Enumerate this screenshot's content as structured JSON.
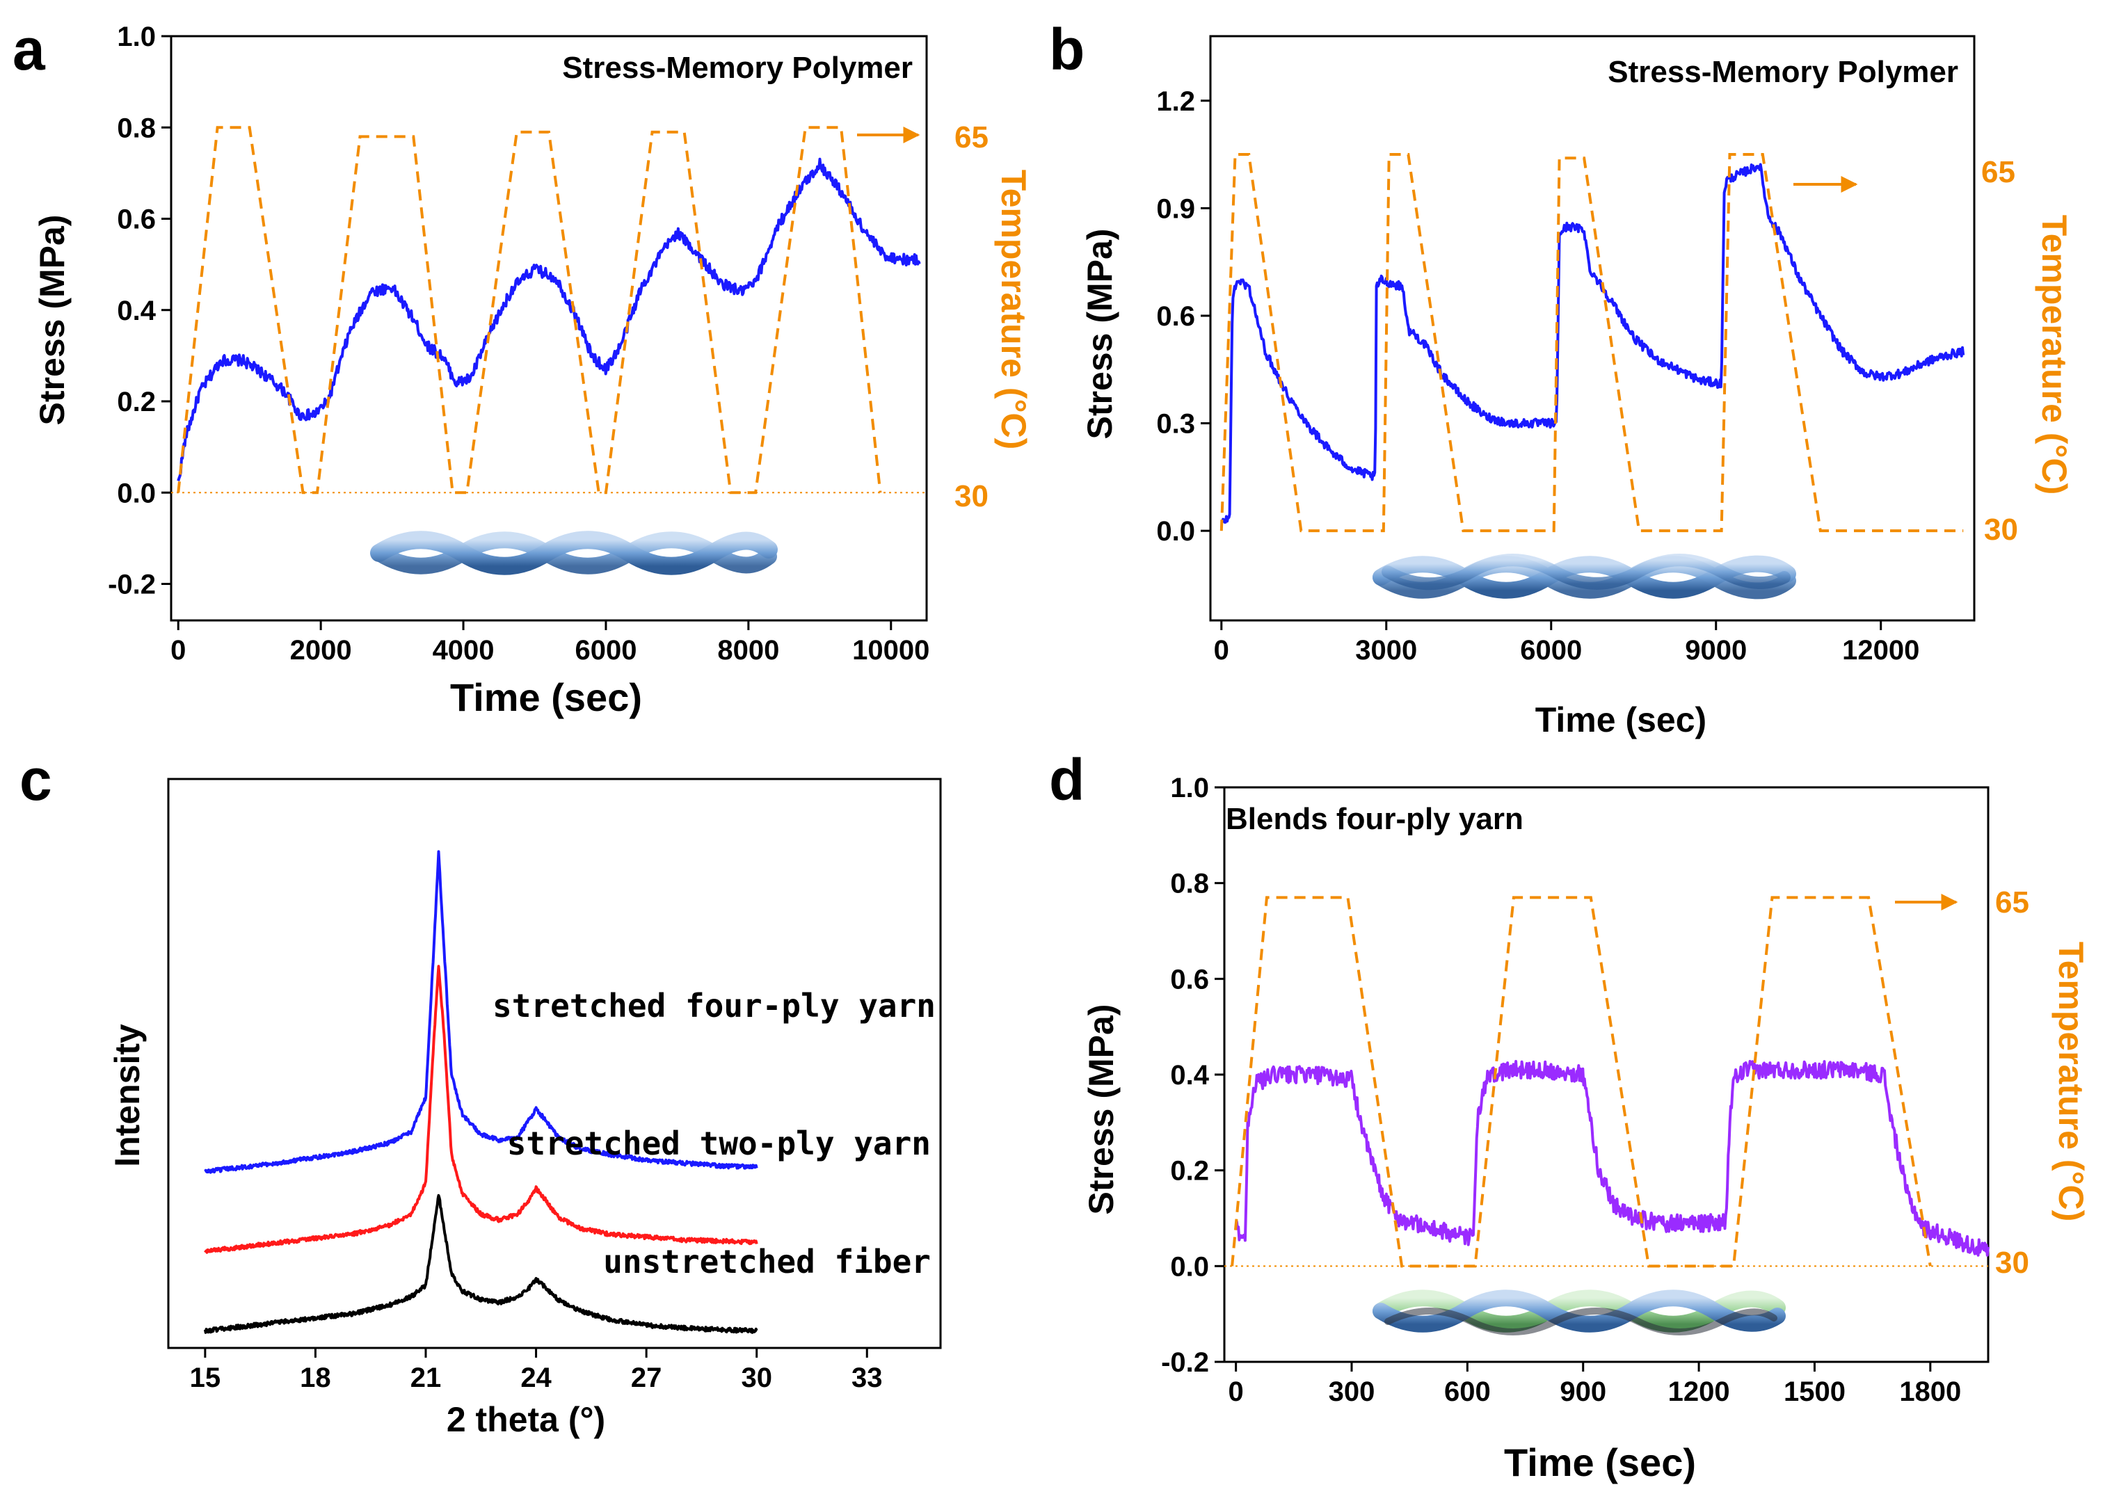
{
  "colors": {
    "stress_blue": "#1a1aff",
    "stress_purple": "#9a2bff",
    "temperature_orange": "#f28c00",
    "xrd_red": "#ff1a1a",
    "xrd_black": "#000000"
  },
  "chart_data": [
    {
      "panel": "a",
      "type": "line",
      "title": "Stress-Memory Polymer",
      "xlabel": "Time (sec)",
      "ylabel": "Stress (MPa)",
      "ylabel_right": "Temperature (°C)",
      "xlim": [
        -100,
        10500
      ],
      "ylim": [
        -0.28,
        1.0
      ],
      "x_ticks": [
        "0",
        "2000",
        "4000",
        "6000",
        "8000",
        "10000"
      ],
      "x_tick_values": [
        0,
        2000,
        4000,
        6000,
        8000,
        10000
      ],
      "y_ticks": [
        "1.0",
        "0.8",
        "0.6",
        "0.4",
        "0.2",
        "0.0",
        "-0.2"
      ],
      "y_tick_values": [
        1.0,
        0.8,
        0.6,
        0.4,
        0.2,
        0.0,
        -0.2
      ],
      "right_ticks": [
        {
          "label": "65",
          "stress_level": 0.8
        },
        {
          "label": "30",
          "stress_level": 0.0
        }
      ],
      "series": [
        {
          "name": "Stress",
          "kind": "stress",
          "x": [
            0,
            100,
            300,
            600,
            900,
            1200,
            1500,
            1700,
            1900,
            2100,
            2400,
            2700,
            3000,
            3300,
            3500,
            3700,
            3900,
            4100,
            4400,
            4700,
            5000,
            5300,
            5600,
            5800,
            6000,
            6200,
            6500,
            6800,
            7000,
            7300,
            7600,
            7900,
            8100,
            8400,
            8700,
            9000,
            9300,
            9600,
            9900,
            10200,
            10400
          ],
          "values": [
            0.02,
            0.12,
            0.22,
            0.29,
            0.29,
            0.26,
            0.22,
            0.17,
            0.17,
            0.2,
            0.35,
            0.44,
            0.45,
            0.38,
            0.32,
            0.3,
            0.24,
            0.25,
            0.36,
            0.45,
            0.49,
            0.47,
            0.38,
            0.3,
            0.27,
            0.32,
            0.45,
            0.53,
            0.57,
            0.52,
            0.46,
            0.44,
            0.46,
            0.58,
            0.66,
            0.72,
            0.66,
            0.58,
            0.52,
            0.51,
            0.51
          ],
          "noise": 0.012
        },
        {
          "name": "Temperature",
          "kind": "temperature",
          "style": "dashed",
          "x": [
            0,
            550,
            1000,
            1750,
            1950,
            2550,
            3300,
            3850,
            4050,
            4750,
            5200,
            5900,
            6000,
            6650,
            7100,
            7750,
            8100,
            8800,
            9300,
            9850
          ],
          "values": [
            0.0,
            0.8,
            0.8,
            0.0,
            0.0,
            0.78,
            0.78,
            0.0,
            0.0,
            0.79,
            0.79,
            0.0,
            0.0,
            0.79,
            0.79,
            0.0,
            0.0,
            0.8,
            0.8,
            0.0
          ]
        }
      ]
    },
    {
      "panel": "b",
      "type": "line",
      "title": "Stress-Memory Polymer",
      "xlabel": "Time (sec)",
      "ylabel": "Stress (MPa)",
      "ylabel_right": "Temperature (°C)",
      "xlim": [
        -200,
        13700
      ],
      "ylim": [
        -0.25,
        1.38
      ],
      "x_ticks": [
        "0",
        "3000",
        "6000",
        "9000",
        "12000"
      ],
      "x_tick_values": [
        0,
        3000,
        6000,
        9000,
        12000
      ],
      "y_ticks": [
        "1.2",
        "0.9",
        "0.6",
        "0.3",
        "0.0"
      ],
      "y_tick_values": [
        1.2,
        0.9,
        0.6,
        0.3,
        0.0
      ],
      "right_ticks": [
        {
          "label": "65",
          "stress_level": 1.0
        },
        {
          "label": "30",
          "stress_level": 0.0
        }
      ],
      "series": [
        {
          "name": "Stress",
          "kind": "stress",
          "x": [
            0,
            150,
            200,
            300,
            500,
            800,
            1200,
            1600,
            2000,
            2400,
            2800,
            2820,
            2900,
            3300,
            3400,
            3500,
            3700,
            4000,
            4400,
            4800,
            5200,
            5600,
            6000,
            6100,
            6150,
            6300,
            6600,
            6700,
            6800,
            7100,
            7500,
            7900,
            8300,
            8700,
            9100,
            9150,
            9200,
            9500,
            9800,
            9950,
            10200,
            10500,
            10900,
            11300,
            11700,
            12000,
            12400,
            12800,
            13200,
            13500
          ],
          "values": [
            0.02,
            0.04,
            0.65,
            0.7,
            0.68,
            0.5,
            0.38,
            0.29,
            0.22,
            0.17,
            0.15,
            0.68,
            0.7,
            0.68,
            0.56,
            0.55,
            0.52,
            0.44,
            0.37,
            0.32,
            0.3,
            0.3,
            0.3,
            0.3,
            0.83,
            0.85,
            0.84,
            0.73,
            0.71,
            0.64,
            0.54,
            0.48,
            0.45,
            0.42,
            0.41,
            0.95,
            0.98,
            1.0,
            1.02,
            0.88,
            0.82,
            0.71,
            0.6,
            0.5,
            0.44,
            0.43,
            0.44,
            0.47,
            0.49,
            0.5
          ],
          "noise": 0.012
        },
        {
          "name": "Temperature",
          "kind": "temperature",
          "style": "dashed",
          "x": [
            0,
            250,
            500,
            1450,
            2950,
            3050,
            3400,
            4400,
            6050,
            6150,
            6600,
            7600,
            9100,
            9250,
            9850,
            10900,
            13500
          ],
          "values": [
            0.0,
            1.05,
            1.05,
            0.0,
            0.0,
            1.05,
            1.05,
            0.0,
            0.0,
            1.04,
            1.04,
            0.0,
            0.0,
            1.05,
            1.05,
            0.0,
            0.0
          ]
        }
      ]
    },
    {
      "panel": "c",
      "type": "line",
      "title": "",
      "xlabel": "2 theta (°)",
      "ylabel": "Intensity",
      "xlim": [
        14,
        35
      ],
      "ylim": [
        0,
        100
      ],
      "x_ticks": [
        "15",
        "18",
        "21",
        "24",
        "27",
        "30",
        "33"
      ],
      "x_tick_values": [
        15,
        18,
        21,
        24,
        27,
        30,
        33
      ],
      "series": [
        {
          "name": "stretched four-ply  yarn",
          "color_key": "stress_blue",
          "x": [
            15,
            17,
            19,
            20,
            20.6,
            21.0,
            21.2,
            21.35,
            21.5,
            21.7,
            22.0,
            22.5,
            23.0,
            23.5,
            23.8,
            24.0,
            24.2,
            24.6,
            25.2,
            26,
            27,
            28,
            29,
            30
          ],
          "values": [
            31,
            32.5,
            34.5,
            36,
            38,
            44,
            68,
            87,
            70,
            48,
            41,
            37.5,
            36.5,
            37,
            40,
            42,
            40.5,
            37,
            35,
            34,
            33,
            32.5,
            32,
            31.8
          ],
          "noise": 0.35
        },
        {
          "name": "stretched two-ply yarn",
          "color_key": "xrd_red",
          "x": [
            15,
            17,
            19,
            20,
            20.6,
            21.0,
            21.2,
            21.35,
            21.5,
            21.7,
            22.0,
            22.5,
            23.0,
            23.5,
            23.8,
            24.0,
            24.2,
            24.6,
            25.2,
            26,
            27,
            28,
            29,
            30
          ],
          "values": [
            17,
            18.5,
            20,
            21.5,
            23.5,
            29,
            52,
            67,
            55,
            34,
            27,
            23.5,
            22.5,
            23.5,
            26,
            28,
            26.5,
            23,
            21,
            20,
            19.5,
            19,
            18.8,
            18.6
          ],
          "noise": 0.35
        },
        {
          "name": "unstretched fiber",
          "color_key": "xrd_black",
          "x": [
            15,
            17,
            19,
            20,
            20.6,
            21.0,
            21.2,
            21.35,
            21.5,
            21.7,
            22.0,
            22.5,
            23.0,
            23.5,
            23.8,
            24.0,
            24.2,
            24.6,
            25.2,
            26,
            27,
            28,
            29,
            30
          ],
          "values": [
            3,
            4.5,
            6,
            7.5,
            9,
            11,
            20,
            27,
            21,
            13,
            10,
            8.5,
            8,
            9,
            10.5,
            12,
            11,
            8.5,
            6.5,
            5,
            4,
            3.5,
            3.2,
            3
          ],
          "noise": 0.35
        }
      ]
    },
    {
      "panel": "d",
      "type": "line",
      "title": "Blends    four-ply yarn",
      "xlabel": "Time (sec)",
      "ylabel": "Stress (MPa)",
      "ylabel_right": "Temperature (°C)",
      "xlim": [
        -30,
        1950
      ],
      "ylim": [
        -0.2,
        1.0
      ],
      "x_ticks": [
        "0",
        "300",
        "600",
        "900",
        "1200",
        "1500",
        "1800"
      ],
      "x_tick_values": [
        0,
        300,
        600,
        900,
        1200,
        1500,
        1800
      ],
      "y_ticks": [
        "1.0",
        "0.8",
        "0.6",
        "0.4",
        "0.2",
        "0.0",
        "-0.2"
      ],
      "y_tick_values": [
        1.0,
        0.8,
        0.6,
        0.4,
        0.2,
        0.0,
        -0.2
      ],
      "right_ticks": [
        {
          "label": "65",
          "stress_level": 0.77
        },
        {
          "label": "30",
          "stress_level": 0.0
        }
      ],
      "series": [
        {
          "name": "Stress",
          "kind": "stress",
          "x": [
            0,
            20,
            25,
            30,
            50,
            100,
            200,
            300,
            310,
            340,
            380,
            420,
            500,
            600,
            615,
            625,
            650,
            700,
            800,
            900,
            910,
            940,
            980,
            1030,
            1100,
            1200,
            1270,
            1280,
            1290,
            1320,
            1400,
            1500,
            1600,
            1680,
            1700,
            1740,
            1780,
            1850,
            1950
          ],
          "values": [
            0.08,
            0.06,
            0.06,
            0.3,
            0.38,
            0.4,
            0.4,
            0.39,
            0.35,
            0.25,
            0.15,
            0.1,
            0.08,
            0.06,
            0.06,
            0.3,
            0.39,
            0.41,
            0.41,
            0.4,
            0.35,
            0.2,
            0.13,
            0.1,
            0.09,
            0.09,
            0.09,
            0.3,
            0.39,
            0.41,
            0.41,
            0.41,
            0.41,
            0.4,
            0.3,
            0.15,
            0.08,
            0.06,
            0.03
          ],
          "noise": 0.018
        },
        {
          "name": "Temperature",
          "kind": "temperature",
          "style": "dashed",
          "x": [
            -10,
            80,
            290,
            430,
            620,
            720,
            920,
            1070,
            1290,
            1390,
            1640,
            1800
          ],
          "values": [
            0.0,
            0.77,
            0.77,
            0.0,
            0.0,
            0.77,
            0.77,
            0.0,
            0.0,
            0.77,
            0.77,
            0.0
          ]
        }
      ]
    }
  ],
  "panels": {
    "a": {
      "letter": "a",
      "title": "Stress-Memory Polymer",
      "xlabel": "Time (sec)",
      "ylabel": "Stress (MPa)",
      "ylabel_right": "Temperature (°C)",
      "temp_high": "65",
      "temp_low": "30"
    },
    "b": {
      "letter": "b",
      "title": "Stress-Memory Polymer",
      "xlabel": "Time (sec)",
      "ylabel": "Stress (MPa)",
      "ylabel_right": "Temperature (°C)",
      "temp_high": "65",
      "temp_low": "30"
    },
    "c": {
      "letter": "c",
      "xlabel": "2 theta (°)",
      "ylabel": "Intensity",
      "label_four_ply": "stretched four-ply  yarn",
      "label_two_ply": "stretched two-ply yarn",
      "label_unstretched": "unstretched fiber"
    },
    "d": {
      "letter": "d",
      "title": "Blends    four-ply yarn",
      "xlabel": "Time (sec)",
      "ylabel": "Stress (MPa)",
      "ylabel_right": "Temperature (°C)",
      "temp_high": "65",
      "temp_low": "30"
    }
  }
}
